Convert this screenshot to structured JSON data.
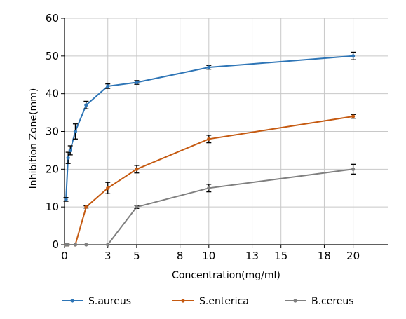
{
  "chart_data": {
    "type": "line",
    "title": "",
    "xlabel": "Concentration(mg/ml)",
    "ylabel": "Inhibition Zone(mm)",
    "xlim": [
      0,
      22.4
    ],
    "ylim": [
      0,
      60
    ],
    "xticks": [
      0,
      3,
      5,
      8,
      10,
      13,
      15,
      18,
      20
    ],
    "yticks": [
      0,
      10,
      20,
      30,
      40,
      50,
      60
    ],
    "grid": true,
    "legend_position": "bottom",
    "error_bars": true,
    "series": [
      {
        "name": "S.aureus",
        "color": "#2e75b6",
        "x": [
          0.1,
          0.25,
          0.4,
          0.75,
          1.5,
          3,
          5,
          10,
          20
        ],
        "y": [
          12,
          23,
          25,
          30,
          37,
          42,
          43,
          47,
          50
        ],
        "err": [
          0.5,
          1.5,
          1.2,
          2,
          1,
          0.6,
          0.5,
          0.5,
          1
        ]
      },
      {
        "name": "S.enterica",
        "color": "#c55a11",
        "x": [
          0.1,
          0.25,
          0.75,
          1.5,
          3,
          5,
          10,
          20
        ],
        "y": [
          0,
          0,
          0,
          10,
          15,
          20,
          28,
          34
        ],
        "err": [
          0,
          0,
          0,
          0.3,
          1.5,
          1,
          1,
          0.5
        ]
      },
      {
        "name": "B.cereus",
        "color": "#7f7f7f",
        "x": [
          0.1,
          0.25,
          0.75,
          1.5,
          3,
          5,
          10,
          20
        ],
        "y": [
          0,
          0,
          0,
          0,
          0,
          10,
          15,
          20
        ],
        "err": [
          0,
          0,
          0,
          0,
          0,
          0.4,
          1,
          1.3
        ]
      }
    ]
  }
}
